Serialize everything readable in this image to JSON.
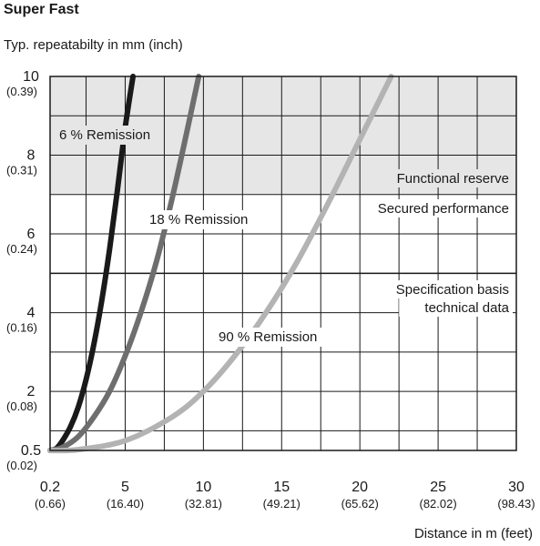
{
  "chart_data": {
    "type": "line",
    "title": "Super Fast",
    "ylabel": "Typ. repeatabilty in mm (inch)",
    "xlabel": "Distance in m (feet)",
    "xlim": [
      0.2,
      30
    ],
    "ylim": [
      0.5,
      10
    ],
    "grid": true,
    "x_ticks": [
      {
        "value": 0.2,
        "label": "0.2",
        "sub": "(0.66)"
      },
      {
        "value": 5,
        "label": "5",
        "sub": "(16.40)"
      },
      {
        "value": 10,
        "label": "10",
        "sub": "(32.81)"
      },
      {
        "value": 15,
        "label": "15",
        "sub": "(49.21)"
      },
      {
        "value": 20,
        "label": "20",
        "sub": "(65.62)"
      },
      {
        "value": 25,
        "label": "25",
        "sub": "(82.02)"
      },
      {
        "value": 30,
        "label": "30",
        "sub": "(98.43)"
      }
    ],
    "y_ticks": [
      {
        "value": 0.5,
        "label": "0.5",
        "sub": "(0.02)"
      },
      {
        "value": 2,
        "label": "2",
        "sub": "(0.08)"
      },
      {
        "value": 4,
        "label": "4",
        "sub": "(0.16)"
      },
      {
        "value": 6,
        "label": "6",
        "sub": "(0.24)"
      },
      {
        "value": 8,
        "label": "8",
        "sub": "(0.31)"
      },
      {
        "value": 10,
        "label": "10",
        "sub": "(0.39)"
      }
    ],
    "regions": [
      {
        "name": "functional-reserve",
        "label": "Functional reserve",
        "y_from": 7,
        "y_to": 10,
        "color": "#e6e6e6"
      },
      {
        "name": "secured-performance",
        "label": "Secured performance"
      }
    ],
    "reference_lines": [
      {
        "y": 5,
        "label_lines": [
          "Specification basis",
          "technical data"
        ]
      }
    ],
    "series": [
      {
        "name": "6 % Remission",
        "color": "#1a1a1a",
        "x": [
          0.2,
          0.6,
          1.0,
          1.5,
          2.0,
          2.5,
          3.0,
          3.5,
          4.0,
          4.5,
          5.0,
          5.5
        ],
        "y": [
          0.5,
          0.55,
          0.75,
          1.1,
          1.6,
          2.3,
          3.2,
          4.3,
          5.6,
          7.1,
          8.7,
          10
        ]
      },
      {
        "name": "18 % Remission",
        "color": "#6e6e6e",
        "x": [
          0.2,
          1.0,
          2.0,
          3.0,
          4.0,
          5.0,
          6.0,
          7.0,
          8.0,
          9.0,
          9.7
        ],
        "y": [
          0.5,
          0.58,
          0.85,
          1.35,
          2.0,
          2.9,
          4.0,
          5.3,
          6.9,
          8.7,
          10
        ]
      },
      {
        "name": "90 % Remission",
        "color": "#b3b3b3",
        "x": [
          0.2,
          2.0,
          5.0,
          8.0,
          10.0,
          12.0,
          14.0,
          16.0,
          18.0,
          20.0,
          22.0
        ],
        "y": [
          0.5,
          0.52,
          0.75,
          1.35,
          2.0,
          2.9,
          4.0,
          5.3,
          6.8,
          8.4,
          10
        ]
      }
    ]
  }
}
